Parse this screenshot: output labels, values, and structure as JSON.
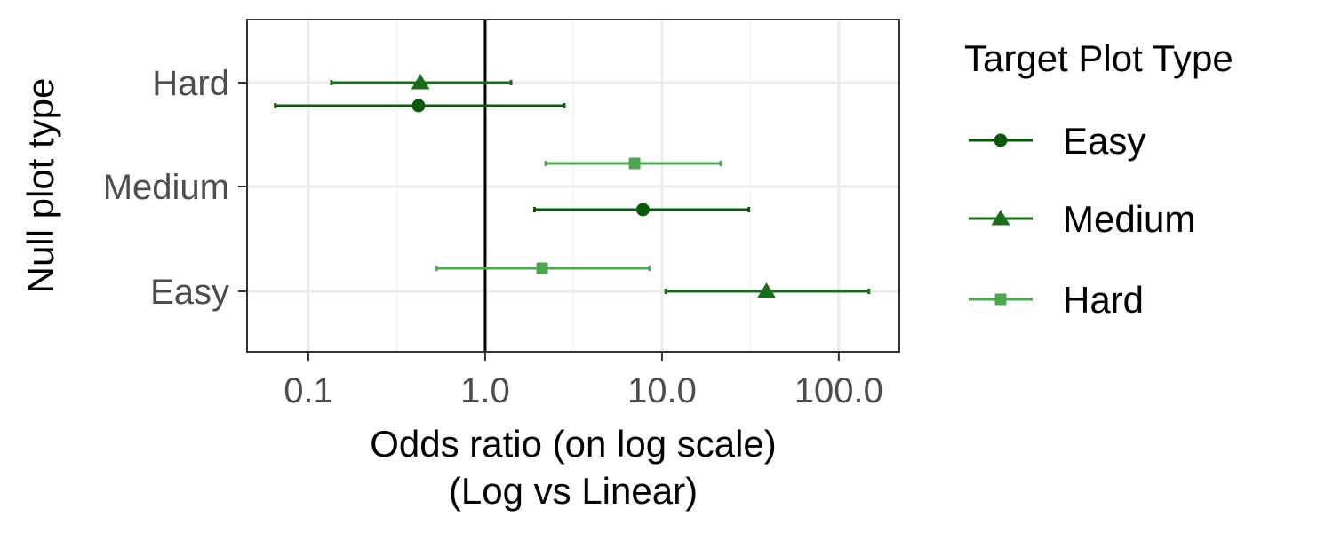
{
  "chart_data": {
    "type": "scatter",
    "subtype": "forest-plot-with-error-bars",
    "title": "",
    "xlabel_line1": "Odds ratio (on log scale)",
    "xlabel_line2": "(Log vs Linear)",
    "ylabel": "Null plot type",
    "x_scale": "log10",
    "xlim": [
      0.045,
      220
    ],
    "x_ticks": [
      0.1,
      1.0,
      10.0,
      100.0
    ],
    "x_tick_labels": [
      "0.1",
      "1.0",
      "10.0",
      "100.0"
    ],
    "y_categories": [
      "Easy",
      "Medium",
      "Hard"
    ],
    "reference_line_x": 1.0,
    "grid": true,
    "legend": {
      "title": "Target Plot Type",
      "position": "right",
      "entries": [
        "Easy",
        "Medium",
        "Hard"
      ]
    },
    "series": [
      {
        "name": "Easy",
        "color": "#0b5a0b",
        "marker": "circle",
        "points": [
          {
            "null_type": "Hard",
            "estimate": 0.42,
            "lower": 0.065,
            "upper": 2.8
          },
          {
            "null_type": "Medium",
            "estimate": 7.8,
            "lower": 1.9,
            "upper": 31
          }
        ]
      },
      {
        "name": "Medium",
        "color": "#1a6e1a",
        "marker": "triangle",
        "points": [
          {
            "null_type": "Hard",
            "estimate": 0.43,
            "lower": 0.135,
            "upper": 1.4
          },
          {
            "null_type": "Easy",
            "estimate": 39,
            "lower": 10.5,
            "upper": 148
          }
        ]
      },
      {
        "name": "Hard",
        "color": "#4fa64f",
        "marker": "square",
        "points": [
          {
            "null_type": "Medium",
            "estimate": 7.0,
            "lower": 2.2,
            "upper": 21.5
          },
          {
            "null_type": "Easy",
            "estimate": 2.1,
            "lower": 0.53,
            "upper": 8.5
          }
        ]
      }
    ]
  }
}
